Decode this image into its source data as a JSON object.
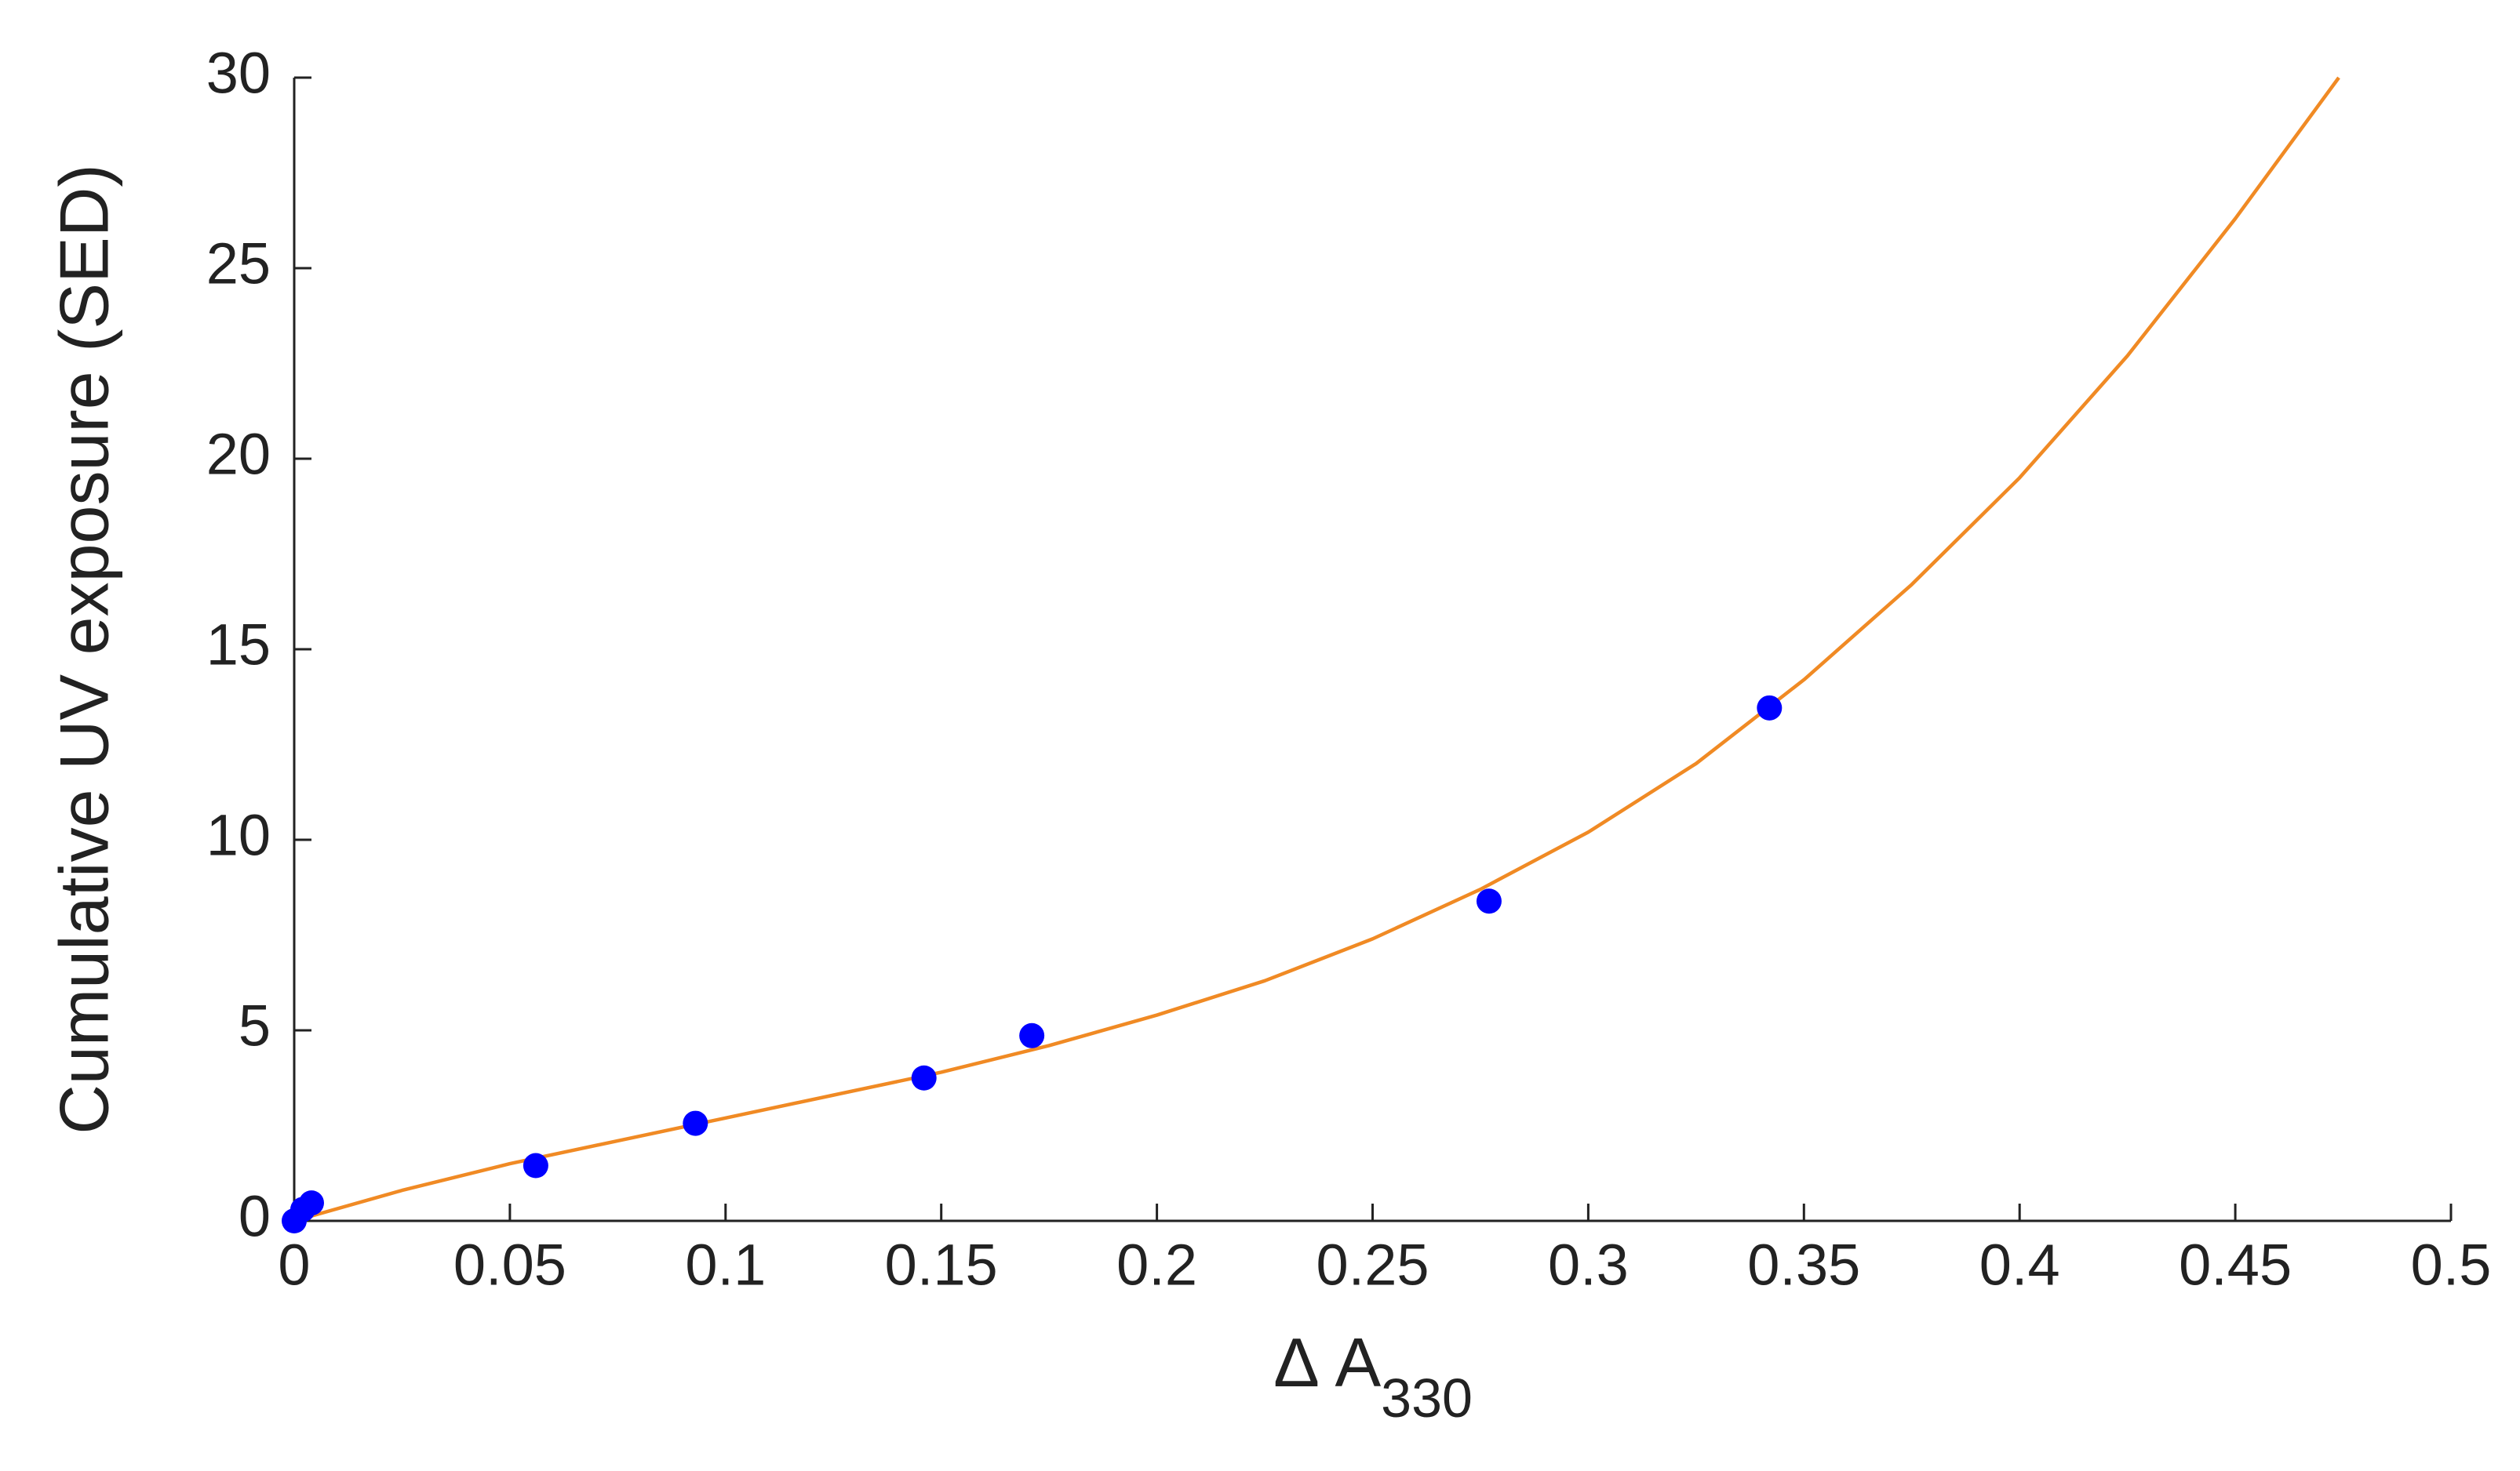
{
  "chart_data": {
    "type": "scatter",
    "xlabel": "Δ A",
    "xlabel_subscript": "330",
    "ylabel": "Cumulative UV exposure (SED)",
    "xlim": [
      0,
      0.5
    ],
    "xticks": [
      0,
      0.05,
      0.1,
      0.15,
      0.2,
      0.25,
      0.3,
      0.35,
      0.4,
      0.45,
      0.5
    ],
    "ylim": [
      0,
      30
    ],
    "yticks": [
      0,
      5,
      10,
      15,
      20,
      25,
      30
    ],
    "grid": false,
    "series": [
      {
        "type": "line",
        "color": "#f08a24",
        "x": [
          0,
          0.025,
          0.05,
          0.075,
          0.1,
          0.125,
          0.15,
          0.175,
          0.2,
          0.225,
          0.25,
          0.275,
          0.3,
          0.325,
          0.35,
          0.375,
          0.4,
          0.425,
          0.45,
          0.474
        ],
        "values": [
          0,
          0.8,
          1.5,
          2.1,
          2.7,
          3.3,
          3.9,
          4.6,
          5.4,
          6.3,
          7.4,
          8.7,
          10.2,
          12.0,
          14.2,
          16.7,
          19.5,
          22.7,
          26.3,
          30
        ]
      },
      {
        "type": "scatter",
        "color": "#0000ff",
        "x": [
          0,
          0.002,
          0.004,
          0.056,
          0.093,
          0.146,
          0.171,
          0.277,
          0.342
        ],
        "values": [
          0,
          0.3,
          0.47,
          1.45,
          2.56,
          3.75,
          4.86,
          8.39,
          13.46
        ]
      }
    ]
  }
}
